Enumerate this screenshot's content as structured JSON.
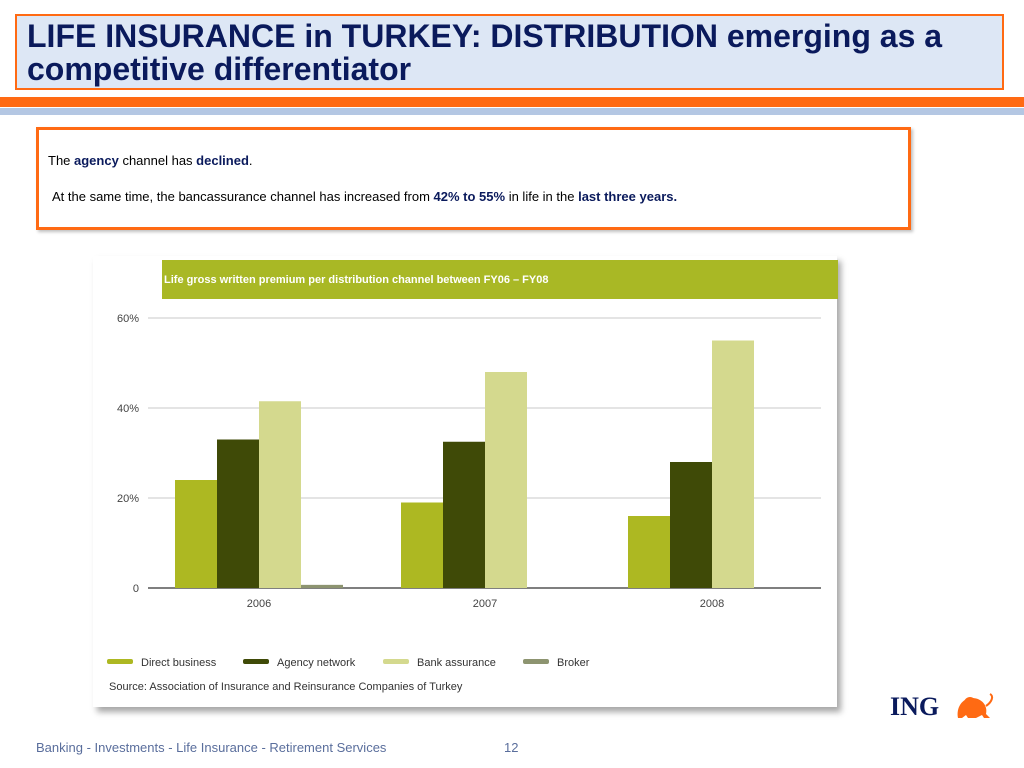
{
  "slide": {
    "title": "LIFE INSURANCE in TURKEY: DISTRIBUTION emerging as a competitive differentiator",
    "footer": "Banking - Investments - Life Insurance - Retirement Services",
    "page_number": "12",
    "logo_text": "ING",
    "colors": {
      "accent": "#ff6a13",
      "title_bg": "#dde7f5",
      "title_text": "#0a1a5c",
      "chart_header": "#a9b825"
    }
  },
  "summary": {
    "line1": {
      "t1": "The ",
      "k1": "agency",
      "t2": " channel has ",
      "k2": "declined",
      "t3": "."
    },
    "line2": {
      "t1": "At the same time, the bancassurance channel has increased from ",
      "k1": "42% to 55%",
      "t2": " in life in the ",
      "k2": "last three years."
    }
  },
  "chart_data": {
    "type": "bar",
    "title": "Life gross written premium per distribution channel between FY06 – FY08",
    "categories": [
      "2006",
      "2007",
      "2008"
    ],
    "series": [
      {
        "name": "Direct business",
        "color": "#adb822",
        "values": [
          24,
          19,
          16
        ]
      },
      {
        "name": "Agency network",
        "color": "#3f4a07",
        "values": [
          33,
          32.5,
          28
        ]
      },
      {
        "name": "Bank assurance",
        "color": "#d4d98e",
        "values": [
          41.5,
          48,
          55
        ]
      },
      {
        "name": "Broker",
        "color": "#8d9470",
        "values": [
          0.7,
          0,
          0
        ]
      }
    ],
    "yticks": [
      {
        "value": 0,
        "label": "0"
      },
      {
        "value": 20,
        "label": "20%"
      },
      {
        "value": 40,
        "label": "40%"
      },
      {
        "value": 60,
        "label": "60%"
      }
    ],
    "ylim": [
      0,
      60
    ],
    "grid": true,
    "legend_position": "bottom",
    "source": "Source: Association of Insurance and Reinsurance Companies of Turkey"
  }
}
